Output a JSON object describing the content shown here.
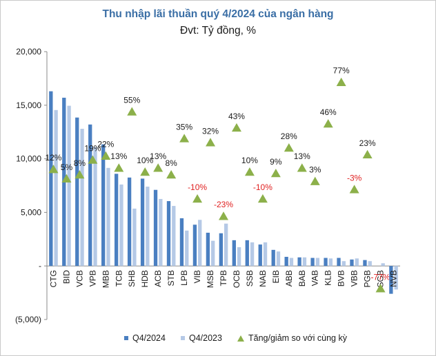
{
  "title": "Thu nhập lãi thuần quý 4/2024 của ngân hàng",
  "subtitle": "Đvt: Tỷ đồng, %",
  "colors": {
    "q4_2024": "#4a7fc1",
    "q4_2023": "#b5c9e6",
    "growth": "#8cb04a",
    "positive_label": "#1a1a1a",
    "negative_label": "#e02020"
  },
  "chart_data": {
    "type": "bar",
    "title": "Thu nhập lãi thuần quý 4/2024 của ngân hàng",
    "subtitle": "Đvt: Tỷ đồng, %",
    "categories": [
      "CTG",
      "BID",
      "VCB",
      "VPB",
      "MBB",
      "TCB",
      "SHB",
      "HDB",
      "ACB",
      "STB",
      "LPB",
      "VIB",
      "MSB",
      "TPB",
      "OCB",
      "SSB",
      "NAB",
      "EIB",
      "ABB",
      "BAB",
      "VAB",
      "KLB",
      "BVB",
      "VBB",
      "PGB",
      "SGB",
      "NVB"
    ],
    "series": [
      {
        "name": "Q4/2024",
        "type": "bar",
        "values": [
          16300,
          15700,
          13850,
          13200,
          11350,
          8600,
          8250,
          8150,
          7100,
          6050,
          4450,
          3850,
          3100,
          3050,
          2400,
          2400,
          2000,
          1500,
          850,
          800,
          750,
          750,
          750,
          600,
          550,
          0,
          -2600
        ]
      },
      {
        "name": "Q4/2023",
        "type": "bar",
        "values": [
          14550,
          14950,
          12800,
          11100,
          9150,
          7600,
          5350,
          7400,
          6250,
          5600,
          3300,
          4300,
          2350,
          3950,
          1750,
          2200,
          2200,
          1350,
          750,
          800,
          750,
          700,
          450,
          700,
          450,
          250,
          -2200
        ]
      },
      {
        "name": "Tăng/giảm so với cùng kỳ",
        "type": "scatter",
        "values": [
          12,
          5,
          8,
          19,
          22,
          13,
          55,
          10,
          13,
          8,
          35,
          -10,
          32,
          -23,
          43,
          10,
          -10,
          9,
          28,
          13,
          3,
          46,
          77,
          -3,
          23,
          -77,
          null
        ],
        "labels": [
          "12%",
          "5%",
          "8%",
          "19%",
          "22%",
          "13%",
          "55%",
          "10%",
          "13%",
          "8%",
          "35%",
          "-10%",
          "32%",
          "-23%",
          "43%",
          "10%",
          "-10%",
          "9%",
          "28%",
          "13%",
          "3%",
          "46%",
          "77%",
          "-3%",
          "23%",
          "-77%",
          ""
        ]
      }
    ],
    "ylim": [
      -5000,
      20000
    ],
    "yticks": [
      -5000,
      0,
      5000,
      10000,
      15000,
      20000
    ],
    "ytick_labels": [
      "(5,000)",
      "-",
      "5,000",
      "10,000",
      "15,000",
      "20,000"
    ],
    "grid": false,
    "legend_position": "bottom"
  },
  "legend": {
    "q4_2024": "Q4/2024",
    "q4_2023": "Q4/2023",
    "growth": "Tăng/giảm so với cùng kỳ"
  }
}
